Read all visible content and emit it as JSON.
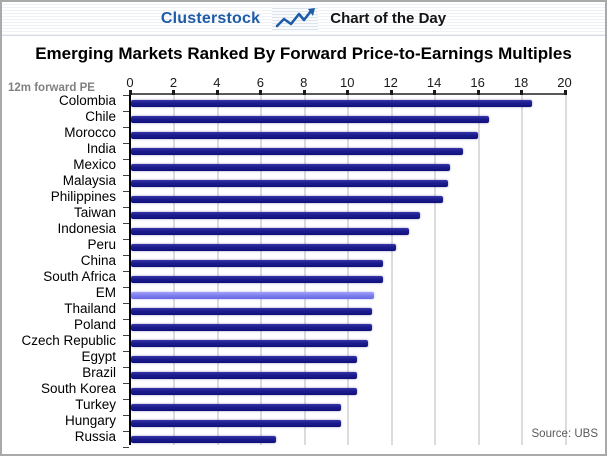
{
  "header": {
    "brand": "Clusterstock",
    "title": "Chart of the Day",
    "brand_color": "#1e5ca8",
    "icon": "line-chart-with-arrow-icon"
  },
  "title": "Emerging Markets Ranked By Forward Price-to-Earnings Multiples",
  "axis_unit_label": "12m forward PE",
  "source": "Source: UBS",
  "colors": {
    "bar": "#1b1b8f",
    "highlight_bar": "#7d7df0",
    "gridline": "#dcdcdc",
    "axis": "#000000",
    "brand_blue": "#1e5ca8"
  },
  "chart_data": {
    "type": "bar",
    "orientation": "horizontal",
    "title": "Emerging Markets Ranked By Forward Price-to-Earnings Multiples",
    "xlabel": "12m forward PE",
    "xlim": [
      0,
      20
    ],
    "x_ticks": [
      0,
      2,
      4,
      6,
      8,
      10,
      12,
      14,
      16,
      18,
      20
    ],
    "grid": true,
    "legend": false,
    "categories": [
      "Colombia",
      "Chile",
      "Morocco",
      "India",
      "Mexico",
      "Malaysia",
      "Philippines",
      "Taiwan",
      "Indonesia",
      "Peru",
      "China",
      "South Africa",
      "EM",
      "Thailand",
      "Poland",
      "Czech Republic",
      "Egypt",
      "Brazil",
      "South Korea",
      "Turkey",
      "Hungary",
      "Russia"
    ],
    "values": [
      18.5,
      16.5,
      16.0,
      15.3,
      14.7,
      14.6,
      14.4,
      13.3,
      12.8,
      12.2,
      11.6,
      11.6,
      11.2,
      11.1,
      11.1,
      10.9,
      10.4,
      10.4,
      10.4,
      9.7,
      9.7,
      6.7
    ],
    "highlight_category": "EM",
    "source": "Source: UBS"
  }
}
